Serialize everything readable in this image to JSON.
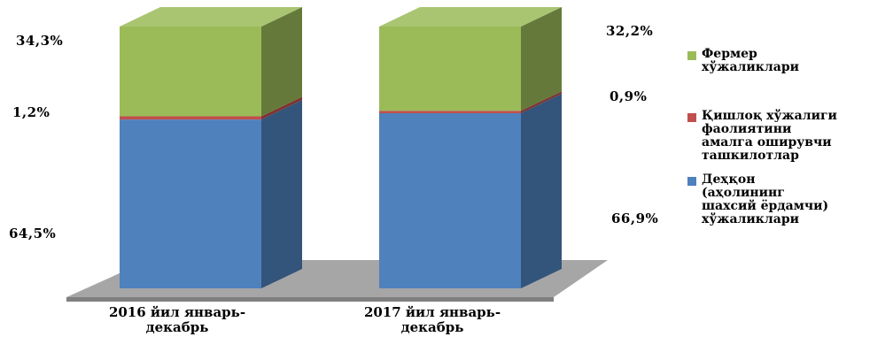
{
  "chart_data": {
    "type": "bar",
    "stacked": true,
    "three_d": true,
    "categories": [
      "2016 йил январь-декабрь",
      "2017 йил январь-декабрь"
    ],
    "category_lines": [
      [
        "2016 йил январь-",
        "декабрь"
      ],
      [
        "2017 йил январь-",
        "декабрь"
      ]
    ],
    "series": [
      {
        "name": "Деҳқон (аҳолининг шахсий ёрдамчи) хўжаликлари",
        "values": [
          64.5,
          66.9
        ],
        "labels": [
          "64,5%",
          "66,9%"
        ],
        "color": "#4f81bd"
      },
      {
        "name": "Қишлоқ хўжалиги фаолиятини амалга оширувчи ташкилотлар",
        "values": [
          1.2,
          0.9
        ],
        "labels": [
          "1,2%",
          "0,9%"
        ],
        "color": "#c0504d"
      },
      {
        "name": "Фермер хўжаликлари",
        "values": [
          34.3,
          32.2
        ],
        "labels": [
          "34,3%",
          "32,2%"
        ],
        "color": "#9bbb59"
      }
    ],
    "legend_order": [
      2,
      1,
      0
    ],
    "legend_lines": [
      [
        "Фермер",
        "хўжаликлари"
      ],
      [
        "Қишлоқ хўжалиги",
        "фаолиятини",
        "амалга оширувчи",
        "ташкилотлар"
      ],
      [
        "Деҳқон",
        "(аҳолининг",
        "шахсий ёрдамчи)",
        "хўжаликлари"
      ]
    ],
    "ylim": [
      0,
      100
    ],
    "legend_position": "right"
  }
}
